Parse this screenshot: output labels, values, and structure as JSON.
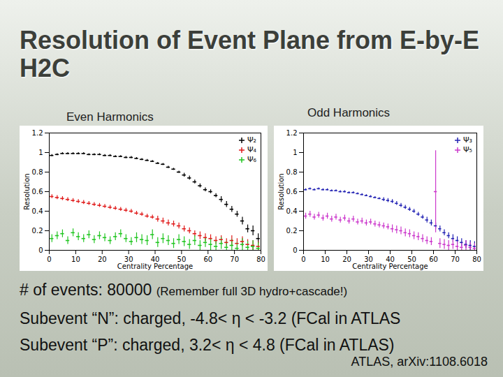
{
  "slide": {
    "title": "Resolution of Event Plane from E-by-E H2C",
    "lines": [
      {
        "text": "# of events: 80000",
        "note": "(Remember full 3D hydro+cascade!)"
      },
      {
        "text": "Subevent “N”: charged, -4.8< η < -3.2 (FCal in ATLAS"
      },
      {
        "text": "Subevent “P”: charged, 3.2< η < 4.8 (FCal in ATLAS)"
      }
    ],
    "citation": "ATLAS, arXiv:1108.6018"
  },
  "chart_data": [
    {
      "type": "scatter",
      "subtitle": "Even Harmonics",
      "x_label": "Centrality Percentage",
      "y_label": "Resolution",
      "xlim": [
        0,
        80
      ],
      "xticks": [
        0,
        10,
        20,
        30,
        40,
        50,
        60,
        70,
        80
      ],
      "ylim": [
        0,
        1.2
      ],
      "yticks": [
        0,
        0.2,
        0.4,
        0.6,
        0.8,
        1,
        1.2
      ],
      "grid": false,
      "legend": "top-right",
      "x": [
        1,
        3,
        5,
        7,
        9,
        11,
        13,
        15,
        17,
        19,
        21,
        23,
        25,
        27,
        29,
        31,
        33,
        35,
        37,
        39,
        41,
        43,
        45,
        47,
        49,
        51,
        53,
        55,
        57,
        59,
        61,
        63,
        65,
        67,
        69,
        71,
        73,
        75,
        77,
        79
      ],
      "series": [
        {
          "name": "Ψ₂",
          "color": "#000000",
          "marker": "plus",
          "values": [
            0.97,
            0.98,
            0.99,
            0.99,
            0.99,
            0.99,
            0.99,
            0.98,
            0.98,
            0.98,
            0.97,
            0.97,
            0.96,
            0.96,
            0.95,
            0.95,
            0.94,
            0.93,
            0.92,
            0.91,
            0.89,
            0.88,
            0.85,
            0.83,
            0.8,
            0.77,
            0.74,
            0.7,
            0.66,
            0.62,
            0.6,
            0.56,
            0.52,
            0.47,
            0.42,
            0.37,
            0.3,
            0.22,
            0.2,
            0.12
          ],
          "errors": [
            0.01,
            0.01,
            0.01,
            0.01,
            0.01,
            0.01,
            0.01,
            0.01,
            0.01,
            0.01,
            0.01,
            0.01,
            0.01,
            0.01,
            0.01,
            0.01,
            0.01,
            0.01,
            0.01,
            0.01,
            0.01,
            0.01,
            0.01,
            0.01,
            0.01,
            0.02,
            0.02,
            0.02,
            0.02,
            0.02,
            0.02,
            0.02,
            0.03,
            0.03,
            0.03,
            0.03,
            0.04,
            0.04,
            0.05,
            0.05
          ]
        },
        {
          "name": "Ψ₄",
          "color": "#e01b1b",
          "marker": "plus",
          "values": [
            0.55,
            0.54,
            0.53,
            0.52,
            0.51,
            0.5,
            0.49,
            0.48,
            0.47,
            0.46,
            0.45,
            0.44,
            0.43,
            0.42,
            0.41,
            0.4,
            0.38,
            0.37,
            0.35,
            0.34,
            0.32,
            0.3,
            0.28,
            0.27,
            0.25,
            0.22,
            0.2,
            0.17,
            0.15,
            0.13,
            0.12,
            0.1,
            0.11,
            0.08,
            0.1,
            0.07,
            0.09,
            0.06,
            0.05,
            0.04
          ],
          "errors": [
            0.02,
            0.02,
            0.02,
            0.02,
            0.02,
            0.02,
            0.02,
            0.02,
            0.02,
            0.02,
            0.02,
            0.02,
            0.02,
            0.02,
            0.02,
            0.02,
            0.02,
            0.02,
            0.02,
            0.02,
            0.03,
            0.03,
            0.03,
            0.03,
            0.03,
            0.03,
            0.03,
            0.03,
            0.04,
            0.04,
            0.04,
            0.04,
            0.04,
            0.04,
            0.05,
            0.05,
            0.05,
            0.05,
            0.05,
            0.05
          ]
        },
        {
          "name": "Ψ₆",
          "color": "#22c622",
          "marker": "plus",
          "values": [
            0.12,
            0.15,
            0.17,
            0.1,
            0.18,
            0.14,
            0.12,
            0.16,
            0.11,
            0.15,
            0.13,
            0.1,
            0.14,
            0.17,
            0.12,
            0.09,
            0.13,
            0.11,
            0.1,
            0.16,
            0.08,
            0.12,
            0.1,
            0.07,
            0.11,
            0.09,
            0.06,
            0.1,
            0.05,
            0.08,
            0.06,
            0.04,
            0.07,
            0.03,
            0.05,
            0.02,
            0.06,
            0.03,
            0.04,
            0.02
          ],
          "errors": [
            0.04,
            0.04,
            0.04,
            0.04,
            0.04,
            0.04,
            0.04,
            0.04,
            0.04,
            0.04,
            0.04,
            0.04,
            0.04,
            0.04,
            0.04,
            0.04,
            0.05,
            0.05,
            0.05,
            0.05,
            0.05,
            0.05,
            0.05,
            0.05,
            0.05,
            0.05,
            0.05,
            0.05,
            0.05,
            0.05,
            0.06,
            0.06,
            0.06,
            0.06,
            0.06,
            0.06,
            0.06,
            0.06,
            0.06,
            0.06
          ]
        }
      ]
    },
    {
      "type": "scatter",
      "subtitle": "Odd Harmonics",
      "x_label": "Centrality Percentage",
      "y_label": "Resolution",
      "xlim": [
        0,
        80
      ],
      "xticks": [
        0,
        10,
        20,
        30,
        40,
        50,
        60,
        70,
        80
      ],
      "ylim": [
        0,
        1.2
      ],
      "yticks": [
        0,
        0.2,
        0.4,
        0.6,
        0.8,
        1,
        1.2
      ],
      "grid": false,
      "legend": "top-right",
      "x": [
        1,
        3,
        5,
        7,
        9,
        11,
        13,
        15,
        17,
        19,
        21,
        23,
        25,
        27,
        29,
        31,
        33,
        35,
        37,
        39,
        41,
        43,
        45,
        47,
        49,
        51,
        53,
        55,
        57,
        59,
        61,
        63,
        65,
        67,
        69,
        71,
        73,
        75,
        77,
        79
      ],
      "series": [
        {
          "name": "Ψ₃",
          "color": "#2323b4",
          "marker": "plus",
          "values": [
            0.62,
            0.63,
            0.62,
            0.63,
            0.62,
            0.62,
            0.61,
            0.61,
            0.6,
            0.6,
            0.59,
            0.59,
            0.58,
            0.57,
            0.56,
            0.55,
            0.54,
            0.53,
            0.52,
            0.51,
            0.5,
            0.48,
            0.46,
            0.44,
            0.42,
            0.4,
            0.37,
            0.34,
            0.31,
            0.28,
            0.25,
            0.22,
            0.18,
            0.15,
            0.12,
            0.1,
            0.08,
            0.06,
            0.05,
            0.04
          ],
          "errors": [
            0.01,
            0.01,
            0.01,
            0.01,
            0.01,
            0.01,
            0.01,
            0.01,
            0.01,
            0.01,
            0.01,
            0.01,
            0.01,
            0.01,
            0.01,
            0.01,
            0.01,
            0.01,
            0.02,
            0.02,
            0.02,
            0.02,
            0.02,
            0.02,
            0.02,
            0.02,
            0.02,
            0.02,
            0.03,
            0.03,
            0.03,
            0.03,
            0.03,
            0.03,
            0.04,
            0.04,
            0.04,
            0.04,
            0.05,
            0.05
          ]
        },
        {
          "name": "Ψ₅",
          "color": "#cc3acc",
          "marker": "plus",
          "values": [
            0.35,
            0.37,
            0.34,
            0.36,
            0.33,
            0.35,
            0.32,
            0.34,
            0.31,
            0.33,
            0.3,
            0.32,
            0.29,
            0.3,
            0.28,
            0.29,
            0.27,
            0.26,
            0.25,
            0.24,
            0.22,
            0.21,
            0.2,
            0.18,
            0.17,
            0.15,
            0.14,
            0.12,
            0.1,
            0.09,
            0.6,
            0.07,
            0.06,
            0.05,
            0.06,
            0.04,
            0.03,
            0.05,
            0.03,
            0.02
          ],
          "errors": [
            0.03,
            0.03,
            0.03,
            0.03,
            0.03,
            0.03,
            0.03,
            0.03,
            0.03,
            0.03,
            0.03,
            0.03,
            0.03,
            0.03,
            0.03,
            0.03,
            0.03,
            0.03,
            0.03,
            0.03,
            0.04,
            0.04,
            0.04,
            0.04,
            0.04,
            0.04,
            0.04,
            0.04,
            0.04,
            0.04,
            0.42,
            0.05,
            0.05,
            0.05,
            0.05,
            0.05,
            0.05,
            0.05,
            0.05,
            0.05
          ]
        }
      ]
    }
  ]
}
